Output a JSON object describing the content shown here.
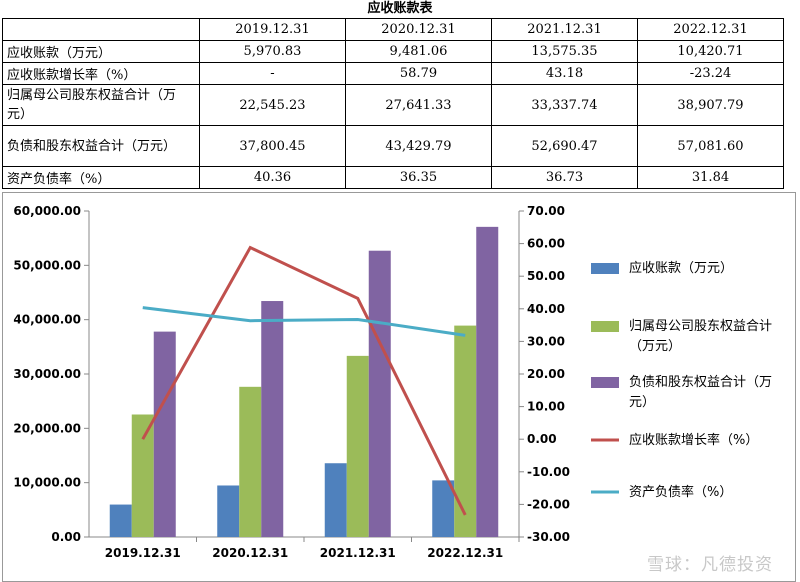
{
  "table": {
    "title": "应收账款表",
    "headers": [
      "",
      "2019.12.31",
      "2020.12.31",
      "2021.12.31",
      "2022.12.31"
    ],
    "rows": [
      {
        "label": "应收账款（万元）",
        "values": [
          "5,970.83",
          "9,481.06",
          "13,575.35",
          "10,420.71"
        ]
      },
      {
        "label": "应收账款增长率（%）",
        "values": [
          "-",
          "58.79",
          "43.18",
          "-23.24"
        ]
      },
      {
        "label": "归属母公司股东权益合计（万元）",
        "values": [
          "22,545.23",
          "27,641.33",
          "33,337.74",
          "38,907.79"
        ]
      },
      {
        "label": "负债和股东权益合计（万元）",
        "values": [
          "37,800.45",
          "43,429.79",
          "52,690.47",
          "57,081.60"
        ]
      },
      {
        "label": "资产负债率（%）",
        "values": [
          "40.36",
          "36.35",
          "36.73",
          "31.84"
        ]
      }
    ]
  },
  "chart_data": {
    "type": "bar",
    "categories": [
      "2019.12.31",
      "2020.12.31",
      "2021.12.31",
      "2022.12.31"
    ],
    "series": [
      {
        "name": "应收账款（万元）",
        "kind": "bar",
        "axis": "left",
        "color": "#4f81bd",
        "values": [
          5970.83,
          9481.06,
          13575.35,
          10420.71
        ]
      },
      {
        "name": "归属母公司股东权益合计（万元）",
        "kind": "bar",
        "axis": "left",
        "color": "#9bbb59",
        "values": [
          22545.23,
          27641.33,
          33337.74,
          38907.79
        ]
      },
      {
        "name": "负债和股东权益合计（万元）",
        "kind": "bar",
        "axis": "left",
        "color": "#8064a2",
        "values": [
          37800.45,
          43429.79,
          52690.47,
          57081.6
        ]
      },
      {
        "name": "应收账款增长率（%）",
        "kind": "line",
        "axis": "right",
        "color": "#c0504d",
        "values": [
          0,
          58.79,
          43.18,
          -23.24
        ]
      },
      {
        "name": "资产负债率（%）",
        "kind": "line",
        "axis": "right",
        "color": "#4bacc6",
        "values": [
          40.36,
          36.35,
          36.73,
          31.84
        ]
      }
    ],
    "left_axis": {
      "min": 0,
      "max": 60000,
      "step": 10000,
      "tick_labels": [
        "0.00",
        "10,000.00",
        "20,000.00",
        "30,000.00",
        "40,000.00",
        "50,000.00",
        "60,000.00"
      ]
    },
    "right_axis": {
      "min": -30,
      "max": 70,
      "step": 10,
      "tick_labels": [
        "-30.00",
        "-20.00",
        "-10.00",
        "0.00",
        "10.00",
        "20.00",
        "30.00",
        "40.00",
        "50.00",
        "60.00",
        "70.00"
      ]
    },
    "grid": false,
    "legend_position": "right"
  },
  "watermark": "雪球：凡德投资"
}
